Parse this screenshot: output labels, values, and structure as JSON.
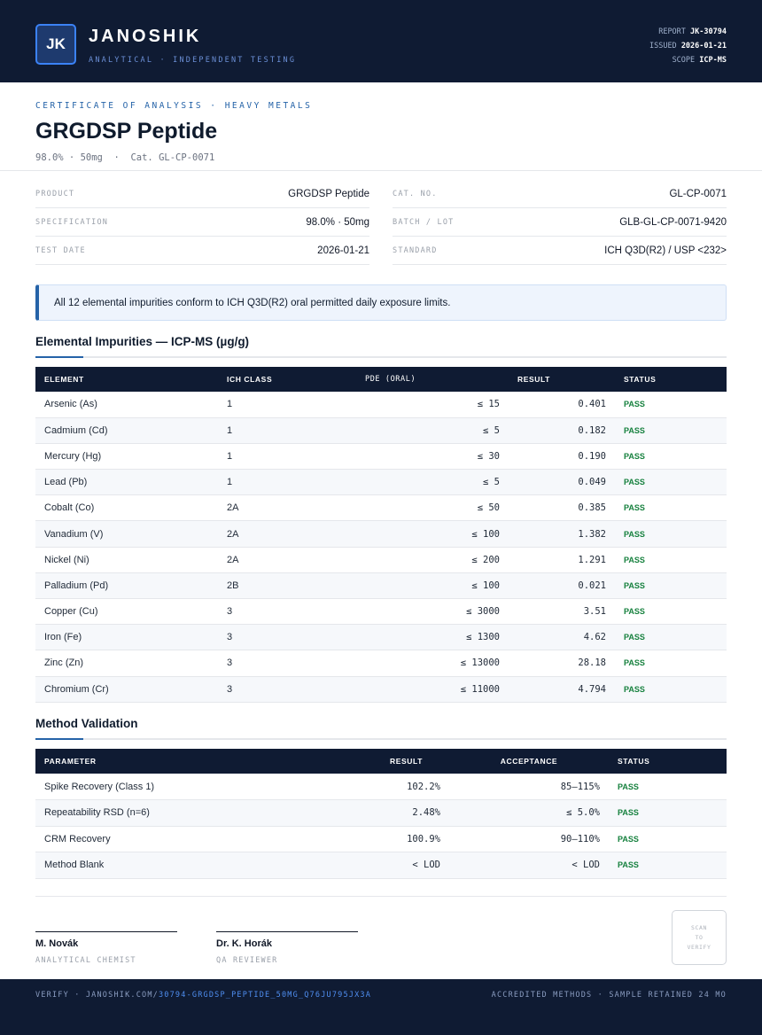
{
  "header": {
    "logo": "JK",
    "brand": "JANOSHIK",
    "tagline": "ANALYTICAL · INDEPENDENT TESTING",
    "meta": [
      {
        "label": "REPORT",
        "value": "JK-30794"
      },
      {
        "label": "ISSUED",
        "value": "2026-01-21"
      },
      {
        "label": "SCOPE",
        "value": "ICP-MS"
      }
    ]
  },
  "title": {
    "kicker": "CERTIFICATE OF ANALYSIS · HEAVY METALS",
    "product": "GRGDSP Peptide",
    "subtitle": "98.0% · 50mg  ·  Cat. GL-CP-0071"
  },
  "info_left": [
    {
      "label": "PRODUCT",
      "value": "GRGDSP Peptide"
    },
    {
      "label": "SPECIFICATION",
      "value": "98.0% · 50mg"
    },
    {
      "label": "TEST DATE",
      "value": "2026-01-21"
    }
  ],
  "info_right": [
    {
      "label": "CAT. NO.",
      "value": "GL-CP-0071"
    },
    {
      "label": "BATCH / LOT",
      "value": "GLB-GL-CP-0071-9420"
    },
    {
      "label": "STANDARD",
      "value": "ICH Q3D(R2) / USP <232>"
    }
  ],
  "notice": "All 12 elemental impurities conform to ICH Q3D(R2) oral permitted daily exposure limits.",
  "impurities": {
    "title": "Elemental Impurities — ICP-MS (µg/g)",
    "headers": [
      "ELEMENT",
      "ICH CLASS",
      "PDE (ORAL)",
      "RESULT",
      "STATUS"
    ],
    "rows": [
      [
        "Arsenic (As)",
        "1",
        "≤ 15",
        "0.401",
        "PASS"
      ],
      [
        "Cadmium (Cd)",
        "1",
        "≤ 5",
        "0.182",
        "PASS"
      ],
      [
        "Mercury (Hg)",
        "1",
        "≤ 30",
        "0.190",
        "PASS"
      ],
      [
        "Lead (Pb)",
        "1",
        "≤ 5",
        "0.049",
        "PASS"
      ],
      [
        "Cobalt (Co)",
        "2A",
        "≤ 50",
        "0.385",
        "PASS"
      ],
      [
        "Vanadium (V)",
        "2A",
        "≤ 100",
        "1.382",
        "PASS"
      ],
      [
        "Nickel (Ni)",
        "2A",
        "≤ 200",
        "1.291",
        "PASS"
      ],
      [
        "Palladium (Pd)",
        "2B",
        "≤ 100",
        "0.021",
        "PASS"
      ],
      [
        "Copper (Cu)",
        "3",
        "≤ 3000",
        "3.51",
        "PASS"
      ],
      [
        "Iron (Fe)",
        "3",
        "≤ 1300",
        "4.62",
        "PASS"
      ],
      [
        "Zinc (Zn)",
        "3",
        "≤ 13000",
        "28.18",
        "PASS"
      ],
      [
        "Chromium (Cr)",
        "3",
        "≤ 11000",
        "4.794",
        "PASS"
      ]
    ]
  },
  "validation": {
    "title": "Method Validation",
    "headers": [
      "PARAMETER",
      "RESULT",
      "ACCEPTANCE",
      "STATUS"
    ],
    "rows": [
      [
        "Spike Recovery (Class 1)",
        "102.2%",
        "85–115%",
        "PASS"
      ],
      [
        "Repeatability RSD (n=6)",
        "2.48%",
        "≤ 5.0%",
        "PASS"
      ],
      [
        "CRM Recovery",
        "100.9%",
        "90–110%",
        "PASS"
      ],
      [
        "Method Blank",
        "< LOD",
        "< LOD",
        "PASS"
      ]
    ]
  },
  "signatures": [
    {
      "name": "M. Novák",
      "role": "ANALYTICAL CHEMIST"
    },
    {
      "name": "Dr. K. Horák",
      "role": "QA REVIEWER"
    }
  ],
  "qr": {
    "line1": "SCAN",
    "line2": "TO",
    "line3": "VERIFY"
  },
  "footer": {
    "verify_prefix": "VERIFY · JANOSHIK.COM/",
    "verify_link": "30794-GRGDSP_PEPTIDE_50MG_Q76JU795JX3A",
    "right": "ACCREDITED METHODS · SAMPLE RETAINED 24 MO"
  }
}
